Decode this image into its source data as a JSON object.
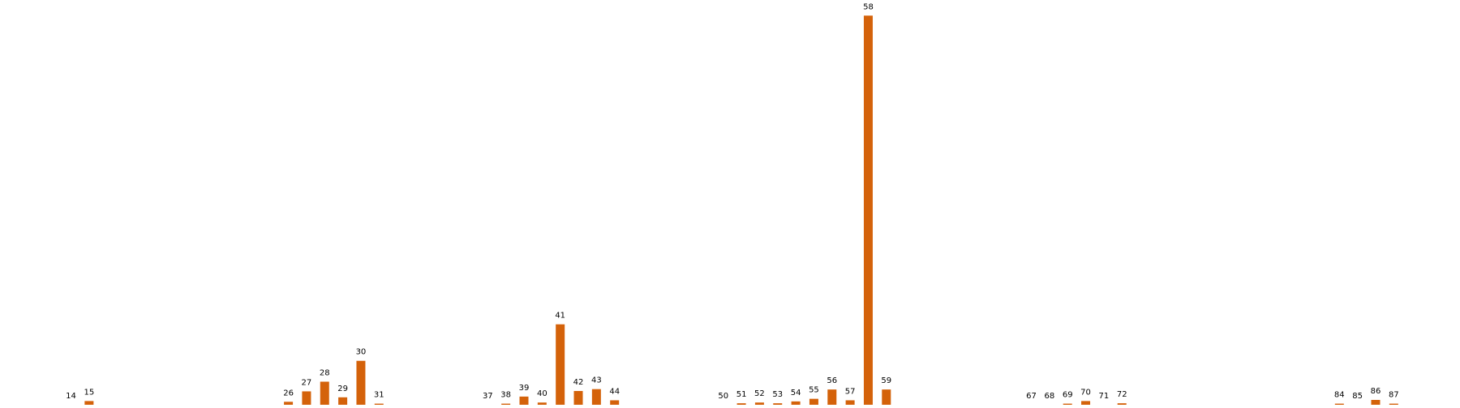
{
  "chart_data": {
    "type": "bar",
    "bar_color": "#d4620a",
    "grid": false,
    "axes_visible": false,
    "legend": "none",
    "ylim": [
      0,
      100
    ],
    "categories": [
      "14",
      "15",
      "26",
      "27",
      "28",
      "29",
      "30",
      "31",
      "37",
      "38",
      "39",
      "40",
      "41",
      "42",
      "43",
      "44",
      "50",
      "51",
      "52",
      "53",
      "54",
      "55",
      "56",
      "57",
      "58",
      "59",
      "67",
      "68",
      "69",
      "70",
      "71",
      "72",
      "84",
      "85",
      "86",
      "87"
    ],
    "values": [
      0.0,
      1.0,
      0.8,
      3.6,
      6.2,
      2.0,
      11.8,
      0.3,
      0.0,
      0.3,
      2.2,
      0.6,
      21.6,
      3.7,
      4.2,
      1.2,
      0.0,
      0.4,
      0.6,
      0.4,
      0.9,
      1.6,
      4.1,
      1.2,
      104.5,
      4.1,
      0.0,
      0.0,
      0.3,
      1.0,
      0.0,
      0.4,
      0.3,
      0.0,
      1.3,
      0.3
    ]
  }
}
